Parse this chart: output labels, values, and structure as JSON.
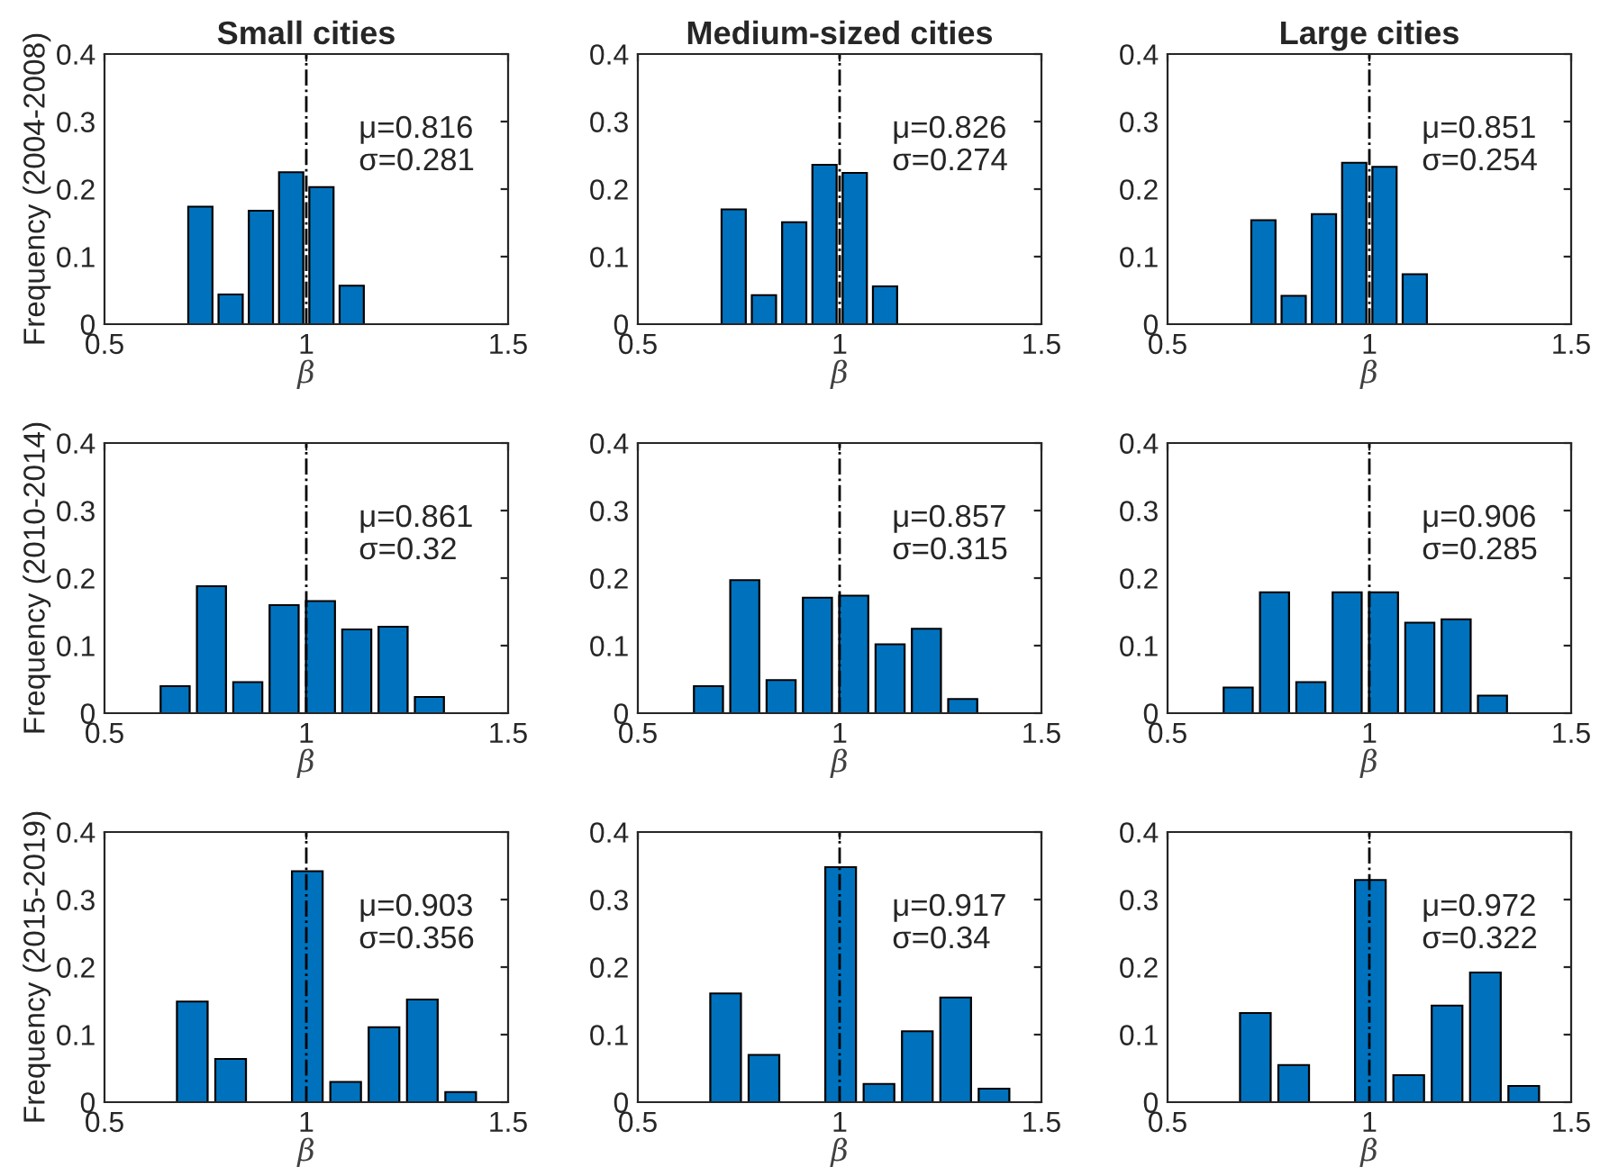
{
  "chart_data": [
    {
      "type": "histogram",
      "title": "Small cities",
      "ylabel": "Frequency (2004-2008)",
      "xlabel": "β",
      "bins": [
        0.7,
        0.775,
        0.85,
        0.925,
        1.0,
        1.075,
        1.15
      ],
      "values": [
        0.174,
        0.044,
        0.168,
        0.225,
        0.203,
        0.057
      ],
      "color": "#0072bd",
      "xlim": [
        0.5,
        1.5
      ],
      "xticks": [
        0.5,
        1,
        1.5
      ],
      "ylim": [
        0,
        0.4
      ],
      "yticks": [
        0,
        0.1,
        0.2,
        0.3,
        0.4
      ],
      "ref_lines": [
        {
          "axis": "x",
          "value": 1,
          "line_style": "dashdot",
          "color": "#000000"
        }
      ],
      "annotations": [
        "μ=0.816",
        "σ=0.281"
      ],
      "grid": false
    },
    {
      "type": "histogram",
      "title": "Medium-sized cities",
      "xlabel": "β",
      "bins": [
        0.7,
        0.775,
        0.85,
        0.925,
        1.0,
        1.075,
        1.15
      ],
      "values": [
        0.17,
        0.043,
        0.151,
        0.236,
        0.224,
        0.056
      ],
      "color": "#0072bd",
      "xlim": [
        0.5,
        1.5
      ],
      "xticks": [
        0.5,
        1,
        1.5
      ],
      "ylim": [
        0,
        0.4
      ],
      "yticks": [
        0,
        0.1,
        0.2,
        0.3,
        0.4
      ],
      "ref_lines": [
        {
          "axis": "x",
          "value": 1,
          "line_style": "dashdot",
          "color": "#000000"
        }
      ],
      "annotations": [
        "μ=0.826",
        "σ=0.274"
      ],
      "grid": false
    },
    {
      "type": "histogram",
      "title": "Large cities",
      "xlabel": "β",
      "bins": [
        0.7,
        0.775,
        0.85,
        0.925,
        1.0,
        1.075,
        1.15
      ],
      "values": [
        0.154,
        0.042,
        0.163,
        0.239,
        0.233,
        0.074
      ],
      "color": "#0072bd",
      "xlim": [
        0.5,
        1.5
      ],
      "xticks": [
        0.5,
        1,
        1.5
      ],
      "ylim": [
        0,
        0.4
      ],
      "yticks": [
        0,
        0.1,
        0.2,
        0.3,
        0.4
      ],
      "ref_lines": [
        {
          "axis": "x",
          "value": 1,
          "line_style": "dashdot",
          "color": "#000000"
        }
      ],
      "annotations": [
        "μ=0.851",
        "σ=0.254"
      ],
      "grid": false
    },
    {
      "type": "histogram",
      "ylabel": "Frequency (2010-2014)",
      "xlabel": "β",
      "bins": [
        0.54,
        0.63,
        0.72,
        0.81,
        0.9,
        0.99,
        1.08,
        1.17,
        1.26,
        1.35
      ],
      "values": [
        0,
        0.04,
        0.188,
        0.046,
        0.16,
        0.166,
        0.124,
        0.128,
        0.024
      ],
      "color": "#0072bd",
      "xlim": [
        0.5,
        1.5
      ],
      "xticks": [
        0.5,
        1,
        1.5
      ],
      "ylim": [
        0,
        0.4
      ],
      "yticks": [
        0,
        0.1,
        0.2,
        0.3,
        0.4
      ],
      "ref_lines": [
        {
          "axis": "x",
          "value": 1,
          "line_style": "dashdot",
          "color": "#000000"
        }
      ],
      "annotations": [
        "μ=0.861",
        "σ=0.32"
      ],
      "grid": false
    },
    {
      "type": "histogram",
      "xlabel": "β",
      "bins": [
        0.54,
        0.63,
        0.72,
        0.81,
        0.9,
        0.99,
        1.08,
        1.17,
        1.26,
        1.35
      ],
      "values": [
        0,
        0.04,
        0.197,
        0.049,
        0.171,
        0.174,
        0.102,
        0.125,
        0.021
      ],
      "color": "#0072bd",
      "xlim": [
        0.5,
        1.5
      ],
      "xticks": [
        0.5,
        1,
        1.5
      ],
      "ylim": [
        0,
        0.4
      ],
      "yticks": [
        0,
        0.1,
        0.2,
        0.3,
        0.4
      ],
      "ref_lines": [
        {
          "axis": "x",
          "value": 1,
          "line_style": "dashdot",
          "color": "#000000"
        }
      ],
      "annotations": [
        "μ=0.857",
        "σ=0.315"
      ],
      "grid": false
    },
    {
      "type": "histogram",
      "xlabel": "β",
      "bins": [
        0.54,
        0.63,
        0.72,
        0.81,
        0.9,
        0.99,
        1.08,
        1.17,
        1.26,
        1.35
      ],
      "values": [
        0,
        0.038,
        0.179,
        0.046,
        0.179,
        0.179,
        0.134,
        0.139,
        0.026
      ],
      "color": "#0072bd",
      "xlim": [
        0.5,
        1.5
      ],
      "xticks": [
        0.5,
        1,
        1.5
      ],
      "ylim": [
        0,
        0.4
      ],
      "yticks": [
        0,
        0.1,
        0.2,
        0.3,
        0.4
      ],
      "ref_lines": [
        {
          "axis": "x",
          "value": 1,
          "line_style": "dashdot",
          "color": "#000000"
        }
      ],
      "annotations": [
        "μ=0.906",
        "σ=0.285"
      ],
      "grid": false
    },
    {
      "type": "histogram",
      "ylabel": "Frequency (2015-2019)",
      "xlabel": "β",
      "bins": [
        0.67,
        0.765,
        0.86,
        0.955,
        1.05,
        1.145,
        1.24,
        1.335,
        1.43
      ],
      "values": [
        0.149,
        0.064,
        0,
        0.342,
        0.03,
        0.111,
        0.152,
        0.015
      ],
      "color": "#0072bd",
      "xlim": [
        0.5,
        1.5
      ],
      "xticks": [
        0.5,
        1,
        1.5
      ],
      "ylim": [
        0,
        0.4
      ],
      "yticks": [
        0,
        0.1,
        0.2,
        0.3,
        0.4
      ],
      "ref_lines": [
        {
          "axis": "x",
          "value": 1,
          "line_style": "dashdot",
          "color": "#000000"
        }
      ],
      "annotations": [
        "μ=0.903",
        "σ=0.356"
      ],
      "grid": false
    },
    {
      "type": "histogram",
      "xlabel": "β",
      "bins": [
        0.67,
        0.765,
        0.86,
        0.955,
        1.05,
        1.145,
        1.24,
        1.335,
        1.43
      ],
      "values": [
        0.161,
        0.07,
        0,
        0.348,
        0.027,
        0.105,
        0.155,
        0.02
      ],
      "color": "#0072bd",
      "xlim": [
        0.5,
        1.5
      ],
      "xticks": [
        0.5,
        1,
        1.5
      ],
      "ylim": [
        0,
        0.4
      ],
      "yticks": [
        0,
        0.1,
        0.2,
        0.3,
        0.4
      ],
      "ref_lines": [
        {
          "axis": "x",
          "value": 1,
          "line_style": "dashdot",
          "color": "#000000"
        }
      ],
      "annotations": [
        "μ=0.917",
        "σ=0.34"
      ],
      "grid": false
    },
    {
      "type": "histogram",
      "xlabel": "β",
      "bins": [
        0.67,
        0.765,
        0.86,
        0.955,
        1.05,
        1.145,
        1.24,
        1.335,
        1.43
      ],
      "values": [
        0.132,
        0.055,
        0,
        0.329,
        0.04,
        0.143,
        0.192,
        0.024
      ],
      "color": "#0072bd",
      "xlim": [
        0.5,
        1.5
      ],
      "xticks": [
        0.5,
        1,
        1.5
      ],
      "ylim": [
        0,
        0.4
      ],
      "yticks": [
        0,
        0.1,
        0.2,
        0.3,
        0.4
      ],
      "ref_lines": [
        {
          "axis": "x",
          "value": 1,
          "line_style": "dashdot",
          "color": "#000000"
        }
      ],
      "annotations": [
        "μ=0.972",
        "σ=0.322"
      ],
      "grid": false
    }
  ]
}
